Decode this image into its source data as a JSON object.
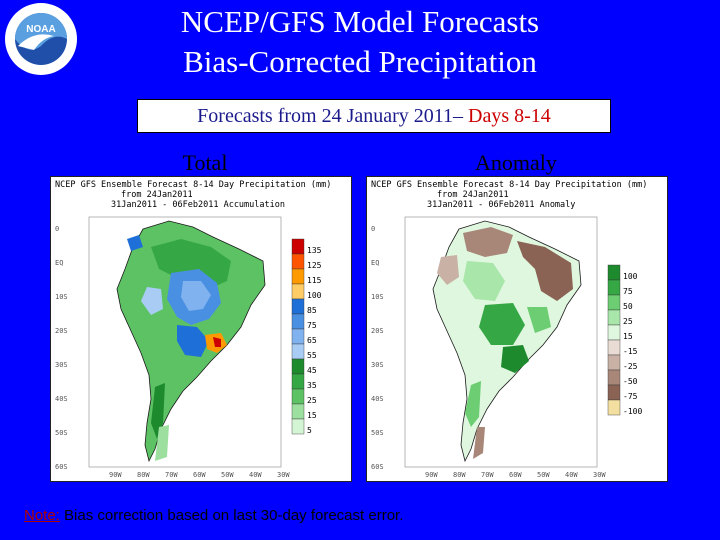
{
  "header": {
    "title_line1": "NCEP/GFS Model Forecasts",
    "title_line2": "Bias-Corrected Precipitation"
  },
  "subtitle": {
    "prefix": "Forecasts from 24 January 2011– ",
    "days": "Days 8-14"
  },
  "total": {
    "label": "Total",
    "map_header": [
      "NCEP GFS Ensemble Forecast 8-14 Day Precipitation (mm)",
      "from 24Jan2011",
      "31Jan2011 - 06Feb2011 Accumulation"
    ],
    "legend": [
      {
        "v": "135",
        "c": "#cc0000"
      },
      {
        "v": "125",
        "c": "#ff5500"
      },
      {
        "v": "115",
        "c": "#ff9900"
      },
      {
        "v": "100",
        "c": "#ffcc66"
      },
      {
        "v": "85",
        "c": "#1f6fd8"
      },
      {
        "v": "75",
        "c": "#4a90e2"
      },
      {
        "v": "65",
        "c": "#7fb2ee"
      },
      {
        "v": "55",
        "c": "#a9ccf5"
      },
      {
        "v": "45",
        "c": "#1d8a2e"
      },
      {
        "v": "35",
        "c": "#35a845"
      },
      {
        "v": "25",
        "c": "#5cc264"
      },
      {
        "v": "15",
        "c": "#9ddf9f"
      },
      {
        "v": "5",
        "c": "#d4f5d4"
      }
    ]
  },
  "anomaly": {
    "label": "Anomaly",
    "map_header": [
      "NCEP GFS Ensemble Forecast 8-14 Day Precipitation (mm)",
      "from 24Jan2011",
      "31Jan2011 - 06Feb2011 Anomaly"
    ],
    "legend": [
      {
        "v": "100",
        "c": "#1d8a2e"
      },
      {
        "v": "75",
        "c": "#35a845"
      },
      {
        "v": "50",
        "c": "#6ccd72"
      },
      {
        "v": "25",
        "c": "#a8e6aa"
      },
      {
        "v": "15",
        "c": "#dff7df"
      },
      {
        "v": "-15",
        "c": "#e8dcd5"
      },
      {
        "v": "-25",
        "c": "#c9b1a5"
      },
      {
        "v": "-50",
        "c": "#a88779"
      },
      {
        "v": "-75",
        "c": "#8a6354"
      },
      {
        "v": "-100",
        "c": "#f3e0a0"
      }
    ]
  },
  "lat_ticks": [
    "0",
    "EQ",
    "10S",
    "20S",
    "30S",
    "40S",
    "50S",
    "60S"
  ],
  "lon_ticks": [
    "90W",
    "80W",
    "70W",
    "60W",
    "50W",
    "40W",
    "30W"
  ],
  "note": {
    "label": "Note:",
    "text": " Bias correction based on last 30-day forecast error."
  },
  "logo_text": "NOAA",
  "colors": {
    "background": "#0000ff",
    "title": "#ffffff",
    "days": "#cc0000"
  }
}
